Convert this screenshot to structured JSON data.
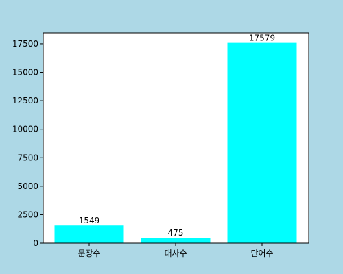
{
  "chart_data": {
    "type": "bar",
    "categories": [
      "문장수",
      "대사수",
      "단어수"
    ],
    "values": [
      1549,
      475,
      17579
    ],
    "data_labels": [
      "1549",
      "475",
      "17579"
    ],
    "title": "",
    "xlabel": "",
    "ylabel": "",
    "ylim": [
      0,
      18458
    ],
    "y_ticks": [
      0,
      2500,
      5000,
      7500,
      10000,
      12500,
      15000,
      17500
    ],
    "y_tick_labels": [
      "0",
      "2500",
      "5000",
      "7500",
      "10000",
      "12500",
      "15000",
      "17500"
    ],
    "grid": false,
    "legend": "none",
    "bar_color": "#00FFFF",
    "figure_background": "#ADD8E6",
    "plot_background": "#FFFFFF"
  }
}
